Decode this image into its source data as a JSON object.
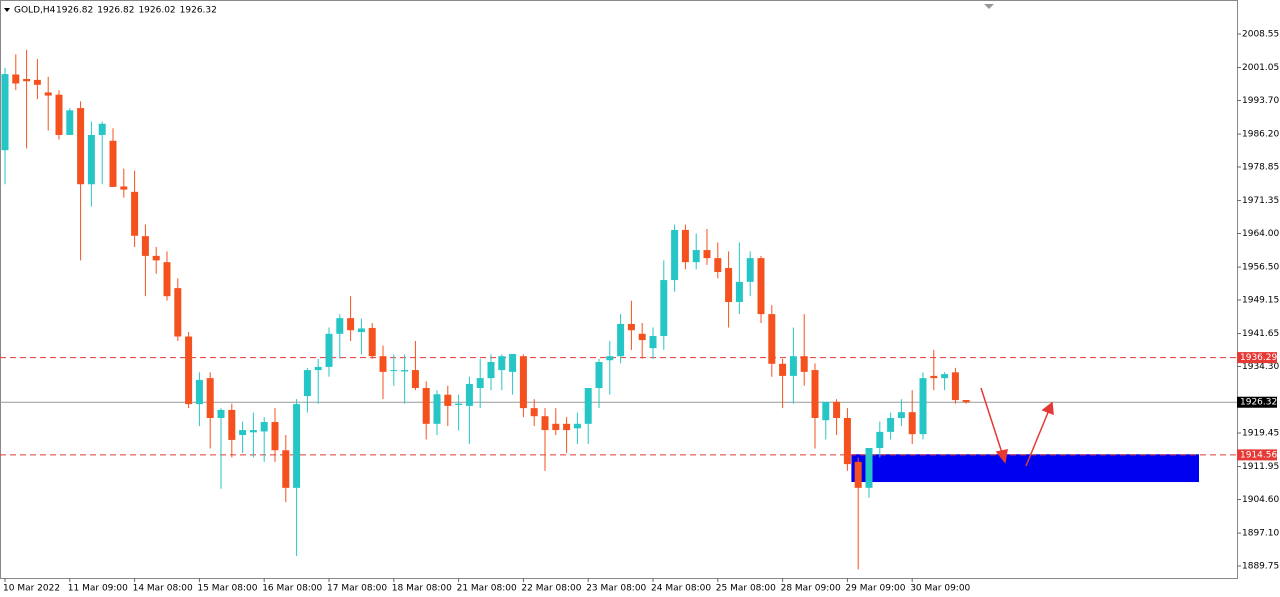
{
  "chart_data": {
    "type": "candlestick",
    "title": "GOLD,H4",
    "header_values": [
      1926.82,
      1926.82,
      1926.02,
      1926.32
    ],
    "up_color": "#26c6c6",
    "down_color": "#f4511e",
    "ylim": [
      1887.07,
      2016.14
    ],
    "yticks": [
      2008.55,
      2001.05,
      {
        "value": 1993.7,
        "label": "1993.70"
      },
      {
        "value": 1986.2,
        "label": "1986.20"
      },
      1978.85,
      1971.35,
      {
        "value": 1964.0,
        "label": "1964.00"
      },
      {
        "value": 1956.5,
        "label": "1956.50"
      },
      1949.15,
      1941.65,
      {
        "value": 1934.3,
        "label": "1934.30"
      },
      1919.45,
      1911.95,
      {
        "value": 1904.6,
        "label": "1904.60"
      },
      {
        "value": 1897.1,
        "label": "1897.10"
      },
      1889.75
    ],
    "xticks": [
      {
        "value": 0,
        "label": "10 Mar 2022"
      },
      {
        "value": 6,
        "label": "11 Mar 09:00"
      },
      {
        "value": 12,
        "label": "14 Mar 08:00"
      },
      {
        "value": 18,
        "label": "15 Mar 08:00"
      },
      {
        "value": 24,
        "label": "16 Mar 08:00"
      },
      {
        "value": 30,
        "label": "17 Mar 08:00"
      },
      {
        "value": 36,
        "label": "18 Mar 08:00"
      },
      {
        "value": 42,
        "label": "21 Mar 08:00"
      },
      {
        "value": 48,
        "label": "22 Mar 08:00"
      },
      {
        "value": 54,
        "label": "23 Mar 08:00"
      },
      {
        "value": 60,
        "label": "24 Mar 08:00"
      },
      {
        "value": 66,
        "label": "25 Mar 08:00"
      },
      {
        "value": 72,
        "label": "28 Mar 09:00"
      },
      {
        "value": 78,
        "label": "29 Mar 09:00"
      },
      {
        "value": 84,
        "label": "30 Mar 09:00"
      }
    ],
    "open": [
      1982.6,
      1999.5,
      1998.5,
      1998.3,
      1995.5,
      1995,
      1986,
      1992,
      1975,
      1986,
      1984.7,
      1974.5,
      1973.3,
      1963.4,
      1959,
      1957.6,
      1951.8,
      1941,
      1925.9,
      1931.7,
      1922.8,
      1924.6,
      1919,
      1919.6,
      1919.8,
      1921.9,
      1915.6,
      1907.2,
      1927.7,
      1933.5,
      1934.2,
      1941.6,
      1945.1,
      1942,
      1942.9,
      1936.6,
      1933.3,
      1933.2,
      1933.5,
      1929.5,
      1921.5,
      1928,
      1925.7,
      1925.5,
      1929.5,
      1931.7,
      1933.5,
      1933.1,
      1936.6,
      1925,
      1923.2,
      1921.5,
      1921.5,
      1920.5,
      1921.5,
      1929.5,
      1935.7,
      1936.6,
      1943.8,
      1941.6,
      1938.4,
      1941.1,
      1953.6,
      1964.8,
      1957.6,
      1960.3,
      1958.5,
      1956.3,
      1948.7,
      1953.2,
      1958.5,
      1946,
      1934.9,
      1932.2,
      1936.6,
      1933.5,
      1922.3,
      1926.4,
      1922.8,
      1913,
      1907.2,
      1916.1,
      1919.7,
      1922.8,
      1924.1,
      1919.2,
      1932.2,
      1931.7,
      1933,
      1926.82
    ],
    "high": [
      2001,
      2004,
      2005,
      2003,
      1999,
      1996,
      1992,
      1993.5,
      1989,
      1989,
      1987.5,
      1978.5,
      1978,
      1966,
      1961,
      1960,
      1954,
      1942,
      1933,
      1933,
      1925,
      1926,
      1922,
      1924,
      1923,
      1925,
      1919,
      1927,
      1934,
      1936,
      1943,
      1946,
      1950,
      1945,
      1944,
      1939,
      1937,
      1937,
      1940,
      1931,
      1929,
      1930,
      1928,
      1932,
      1936,
      1937,
      1937,
      1937,
      1937,
      1927,
      1925,
      1925,
      1923,
      1924,
      1929,
      1936,
      1940,
      1946,
      1949,
      1944,
      1943,
      1958,
      1966,
      1966,
      1964,
      1965,
      1962,
      1960,
      1962,
      1960,
      1959,
      1948,
      1936,
      1943,
      1946,
      1935,
      1926,
      1927,
      1925,
      1914,
      1916,
      1922,
      1924,
      1927,
      1929,
      1933,
      1938,
      1933,
      1934,
      1926.82
    ],
    "low": [
      1975,
      1996,
      1983,
      1994,
      1987,
      1985,
      1986,
      1958,
      1970,
      1975,
      1975,
      1972,
      1961,
      1950,
      1955,
      1949,
      1940,
      1925,
      1921,
      1916,
      1907,
      1914,
      1915,
      1914,
      1913,
      1913,
      1904,
      1892,
      1924,
      1926,
      1932,
      1936,
      1940,
      1937,
      1936,
      1927,
      1930,
      1926,
      1929,
      1918,
      1919,
      1921,
      1920,
      1917,
      1925,
      1929,
      1929,
      1928,
      1923,
      1921,
      1911,
      1919,
      1915,
      1917,
      1917,
      1925,
      1928,
      1935,
      1938,
      1936,
      1936,
      1938,
      1951,
      1956,
      1956,
      1957,
      1954,
      1943,
      1946,
      1950,
      1944,
      1932,
      1925,
      1926,
      1930,
      1916,
      1918,
      1919,
      1911,
      1889,
      1905,
      1914,
      1918,
      1921,
      1917,
      1918,
      1929,
      1929,
      1926,
      1926.02
    ],
    "close": [
      1999.6,
      1997.5,
      1998,
      1997.2,
      1994.8,
      1986,
      1991.5,
      1975,
      1986,
      1988.5,
      1974.4,
      1973.8,
      1963.5,
      1959,
      1958,
      1950,
      1941,
      1925.9,
      1931.3,
      1922.8,
      1924.6,
      1917.9,
      1920.1,
      1920.1,
      1921.9,
      1915.6,
      1907.2,
      1925.9,
      1933.5,
      1934.2,
      1941.6,
      1945.1,
      1942.4,
      1942.8,
      1936.6,
      1933.1,
      1933.5,
      1933.5,
      1929.5,
      1921.5,
      1928.1,
      1925.5,
      1926,
      1930.4,
      1931.7,
      1935.3,
      1936.6,
      1937.1,
      1925,
      1923.2,
      1920.1,
      1920.1,
      1920.1,
      1921.5,
      1929.5,
      1935.3,
      1936.6,
      1943.8,
      1942.4,
      1940.2,
      1941.1,
      1953.6,
      1964.8,
      1957.6,
      1960.3,
      1958.5,
      1955.4,
      1948.7,
      1953.2,
      1958.5,
      1946,
      1934.9,
      1932.2,
      1936.6,
      1933.1,
      1922.8,
      1926.4,
      1922.8,
      1912.5,
      1907.2,
      1916.1,
      1919.7,
      1922.8,
      1924.1,
      1919.2,
      1931.7,
      1931.7,
      1932.6,
      1926.8,
      1926.32
    ],
    "levels": [
      {
        "value": 1936.29,
        "color": "#e53935"
      },
      {
        "value": 1914.56,
        "color": "#e53935"
      }
    ],
    "current_price": 1926.32,
    "zone": {
      "low": 1908.5,
      "high": 1914.7,
      "color": "#0000f0"
    }
  }
}
